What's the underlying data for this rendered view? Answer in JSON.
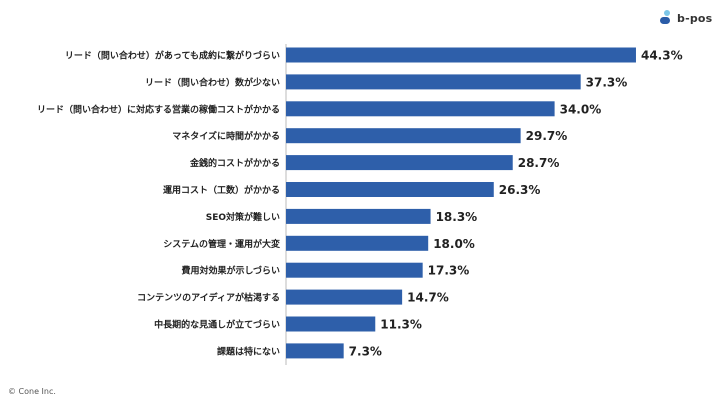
{
  "brand": {
    "logo_text": "b-pos",
    "logo_icon": "b-pos-logo-icon",
    "colors": {
      "mark_dark": "#2a5ca8",
      "mark_light": "#7cc6e8"
    }
  },
  "copyright": "© Cone Inc.",
  "chart_data": {
    "type": "bar",
    "orientation": "horizontal",
    "title": "",
    "xlabel": "",
    "ylabel": "",
    "xlim": [
      0,
      50
    ],
    "grid": false,
    "legend": "none",
    "bar_color": "#2e5faa",
    "categories": [
      "リード（問い合わせ）があっても成約に繋がりづらい",
      "リード（問い合わせ）数が少ない",
      "リード（問い合わせ）に対応する営業の稼働コストがかかる",
      "マネタイズに時間がかかる",
      "金銭的コストがかかる",
      "運用コスト（工数）がかかる",
      "SEO対策が難しい",
      "システムの管理・運用が大変",
      "費用対効果が示しづらい",
      "コンテンツのアイディアが枯渇する",
      "中長期的な見通しが立てづらい",
      "課題は特にない"
    ],
    "values": [
      44.3,
      37.3,
      34.0,
      29.7,
      28.7,
      26.3,
      18.3,
      18.0,
      17.3,
      14.7,
      11.3,
      7.3
    ],
    "value_labels": [
      "44.3%",
      "37.3%",
      "34.0%",
      "29.7%",
      "28.7%",
      "26.3%",
      "18.3%",
      "18.0%",
      "17.3%",
      "14.7%",
      "11.3%",
      "7.3%"
    ]
  }
}
